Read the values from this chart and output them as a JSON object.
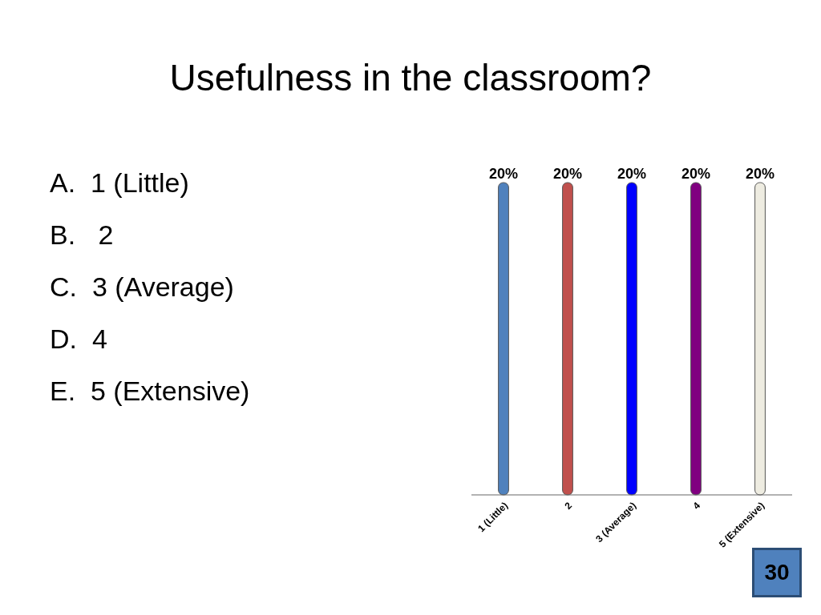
{
  "chart_data": {
    "type": "bar",
    "title": "Usefulness in the classroom?",
    "categories": [
      "1 (Little)",
      "2",
      "3 (Average)",
      "4",
      "5 (Extensive)"
    ],
    "values": [
      20,
      20,
      20,
      20,
      20
    ],
    "colors": [
      "#4f81bd",
      "#c0504d",
      "#0000ff",
      "#800080",
      "#eeece1"
    ],
    "value_labels": [
      "20%",
      "20%",
      "20%",
      "20%",
      "20%"
    ],
    "annotations": [
      "A.  1 (Little)",
      "B.   2",
      "C.  3 (Average)",
      "D.  4",
      "E.  5 (Extensive)",
      "30"
    ],
    "grid": false,
    "legend": false
  }
}
